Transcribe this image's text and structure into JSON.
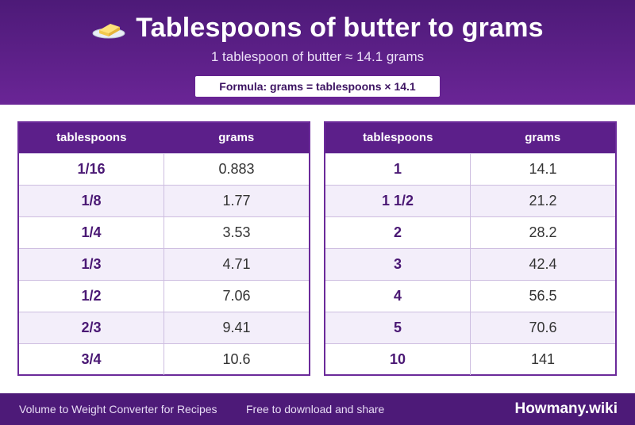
{
  "header": {
    "title": "Tablespoons of butter to grams",
    "subtitle": "1 tablespoon of butter ≈ 14.1 grams",
    "formula": "Formula: grams = tablespoons × 14.1",
    "icon": "butter-icon"
  },
  "tables": {
    "left": {
      "headers": [
        "tablespoons",
        "grams"
      ],
      "rows": [
        [
          "1/16",
          "0.883"
        ],
        [
          "1/8",
          "1.77"
        ],
        [
          "1/4",
          "3.53"
        ],
        [
          "1/3",
          "4.71"
        ],
        [
          "1/2",
          "7.06"
        ],
        [
          "2/3",
          "9.41"
        ],
        [
          "3/4",
          "10.6"
        ]
      ]
    },
    "right": {
      "headers": [
        "tablespoons",
        "grams"
      ],
      "rows": [
        [
          "1",
          "14.1"
        ],
        [
          "1 1/2",
          "21.2"
        ],
        [
          "2",
          "28.2"
        ],
        [
          "3",
          "42.4"
        ],
        [
          "4",
          "56.5"
        ],
        [
          "5",
          "70.6"
        ],
        [
          "10",
          "141"
        ]
      ]
    }
  },
  "footer": {
    "left_text": "Volume to Weight Converter for Recipes",
    "mid_text": "Free to download and share",
    "brand": "Howmany.wiki"
  },
  "colors": {
    "header_bg": "#5a1e88",
    "table_header_bg": "#5c1f8a",
    "alt_row_bg": "#f3eefa",
    "accent_text": "#4a1874"
  }
}
